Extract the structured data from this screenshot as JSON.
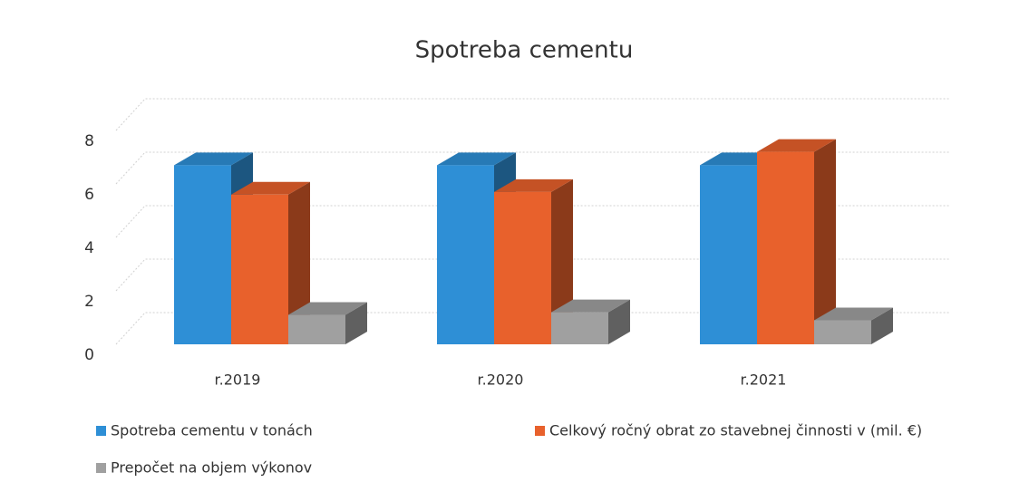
{
  "chart_data": {
    "type": "bar3d",
    "title": "Spotreba cementu",
    "categories": [
      "r.2019",
      "r.2020",
      "r.2021"
    ],
    "series": [
      {
        "name": "Spotreba cementu  v tonách",
        "color": "#2e8fd6",
        "values": [
          6.7,
          6.7,
          6.7
        ]
      },
      {
        "name": "Celkový ročný obrat zo stavebnej činnosti v (mil. €)",
        "color": "#e8612c",
        "values": [
          5.6,
          5.7,
          7.2
        ]
      },
      {
        "name": "Prepočet na objem výkonov",
        "color": "#a0a0a0",
        "values": [
          1.1,
          1.2,
          0.9
        ]
      }
    ],
    "ylim": [
      0,
      8
    ],
    "yticks": [
      0,
      2,
      4,
      6,
      8
    ],
    "grid": true
  }
}
